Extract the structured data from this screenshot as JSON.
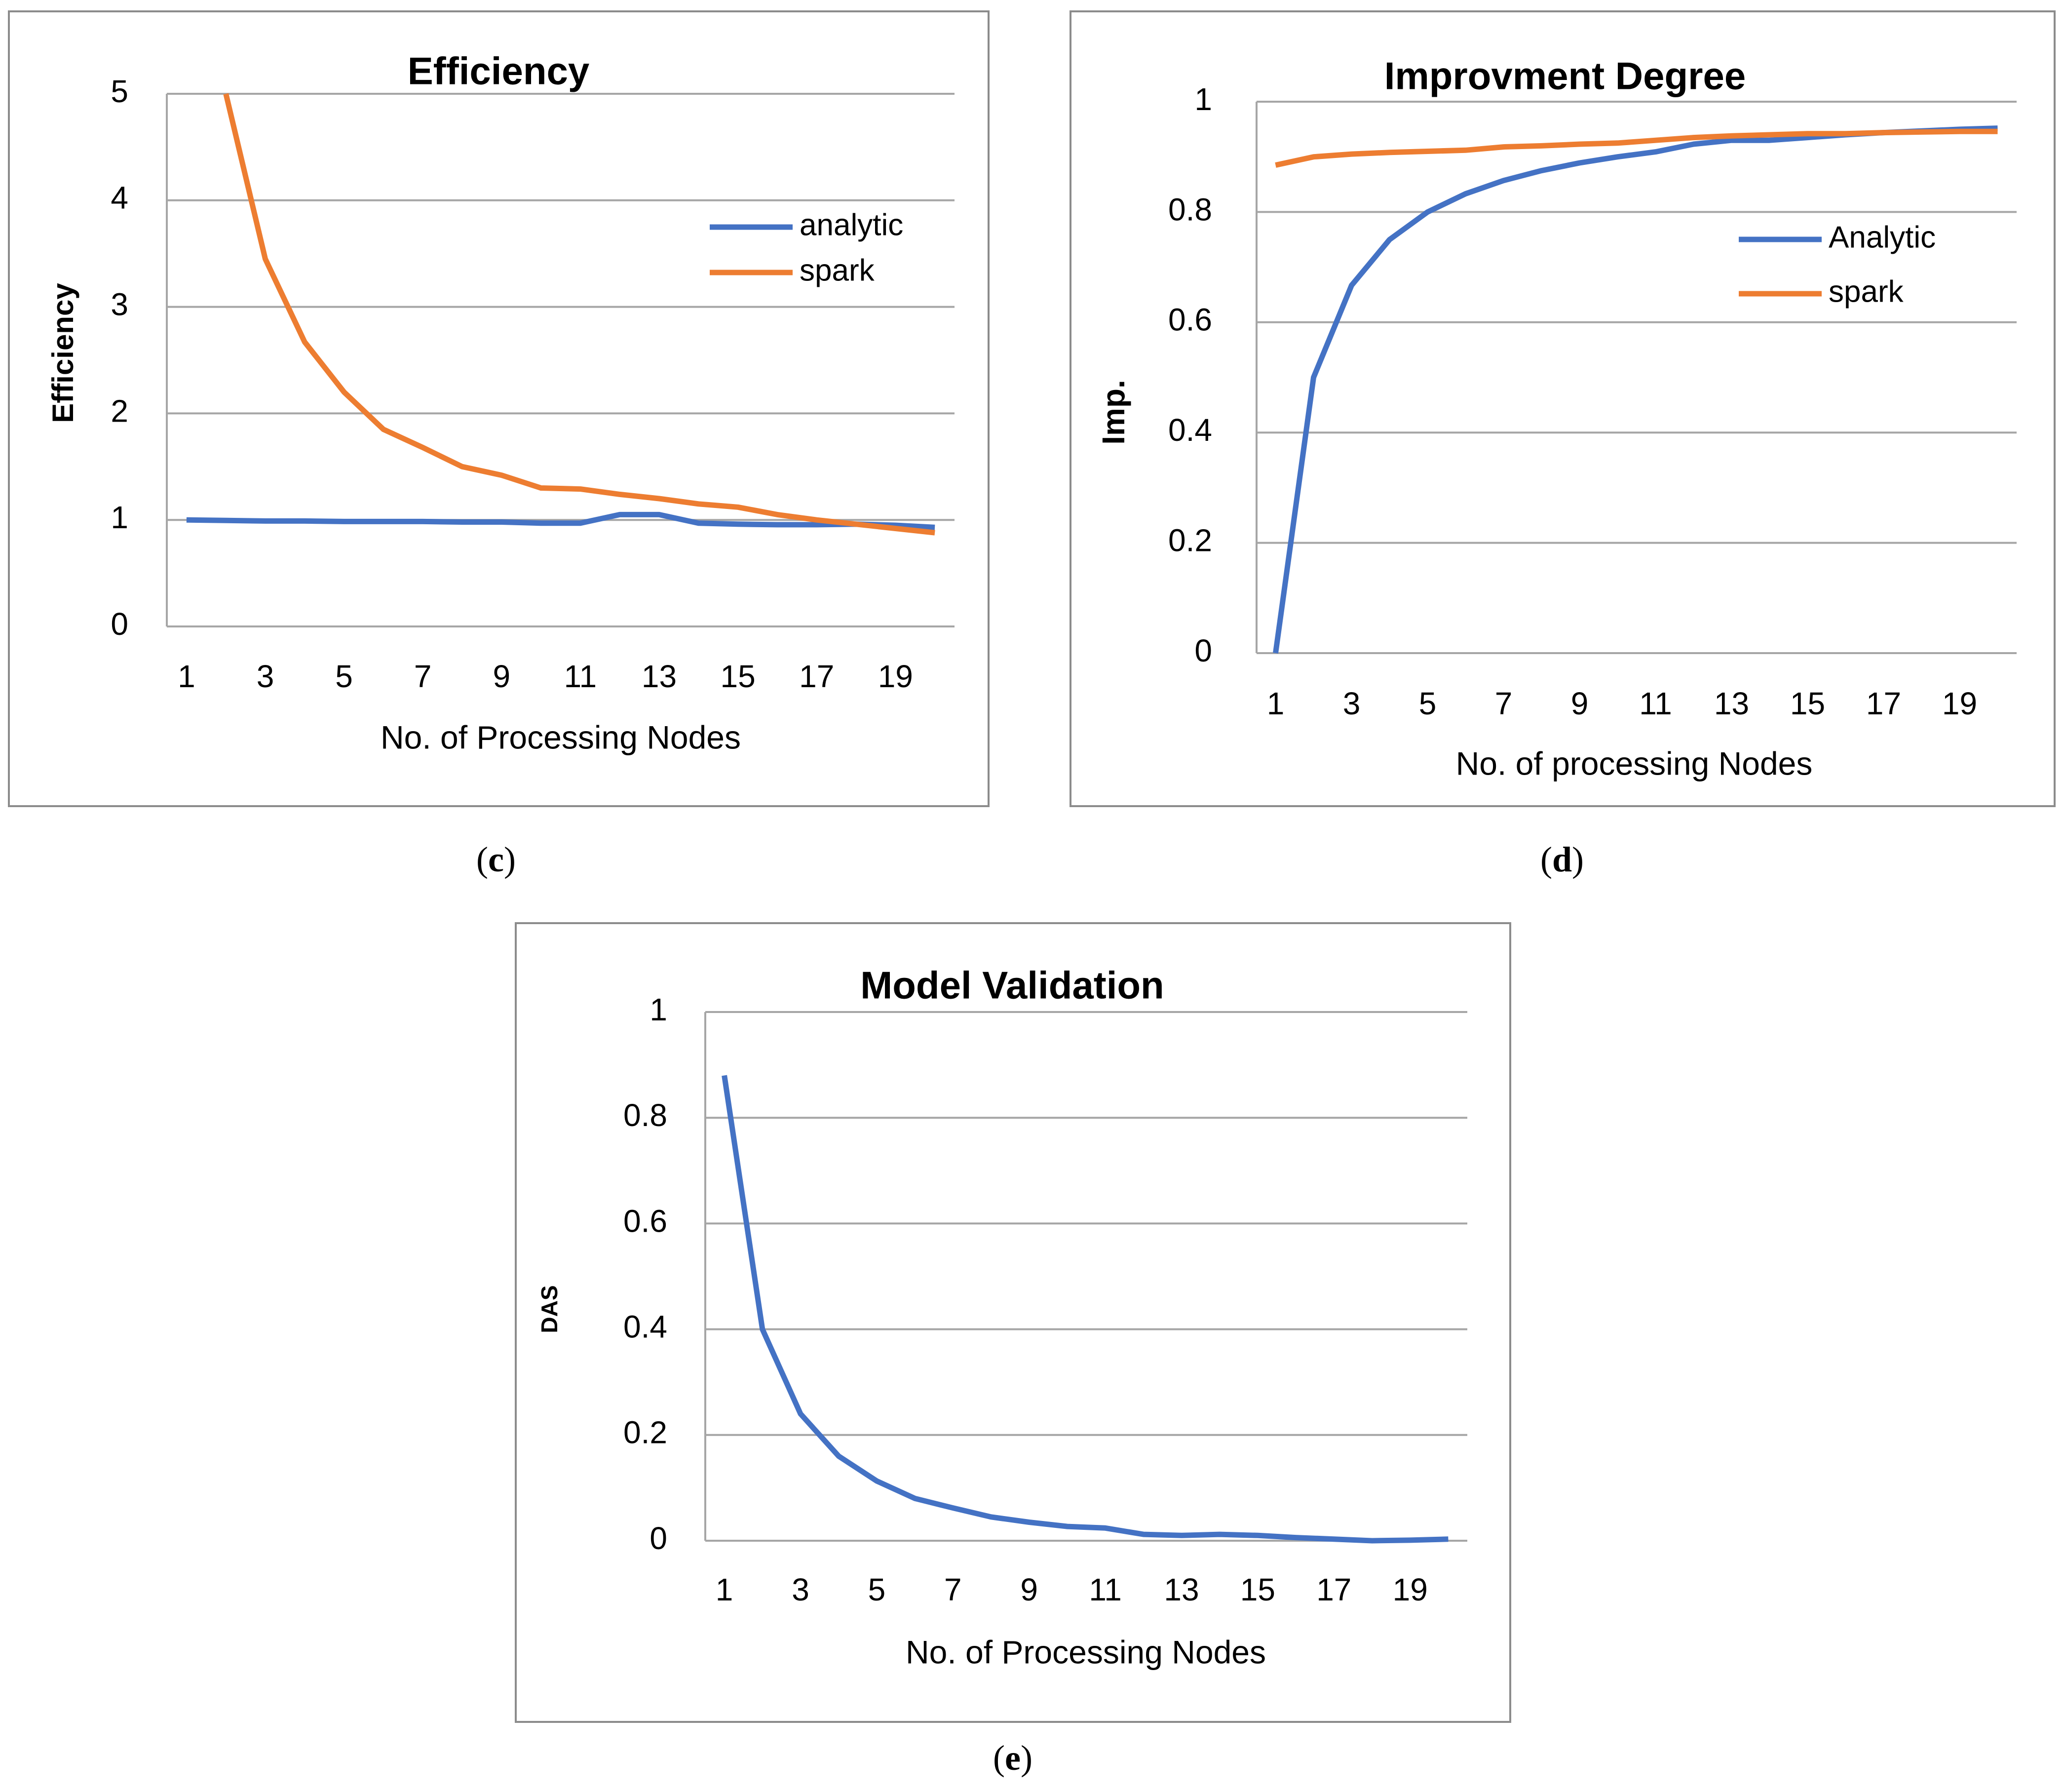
{
  "captions": {
    "c": {
      "open": "(",
      "letter": "c",
      "close": ")"
    },
    "d": {
      "open": "(",
      "letter": "d",
      "close": ")"
    },
    "e": {
      "open": "(",
      "letter": "e",
      "close": ")"
    }
  },
  "colors": {
    "blue": "#4472c4",
    "orange": "#ed7d31",
    "grid": "#a6a6a6",
    "axis": "#a6a6a6",
    "border": "#8c8c8c"
  },
  "chart_data": [
    {
      "id": "efficiency",
      "type": "line",
      "title": "Efficiency",
      "xlabel": "No. of Processing Nodes",
      "ylabel": "Efficiency",
      "x": [
        1,
        2,
        3,
        4,
        5,
        6,
        7,
        8,
        9,
        10,
        11,
        12,
        13,
        14,
        15,
        16,
        17,
        18,
        19,
        20
      ],
      "xticks": [
        "1",
        "3",
        "5",
        "7",
        "9",
        "11",
        "13",
        "15",
        "17",
        "19"
      ],
      "yticks": [
        "0",
        "1",
        "2",
        "3",
        "4",
        "5"
      ],
      "ylim": [
        0,
        5
      ],
      "grid": true,
      "legend_position": "top-right",
      "series": [
        {
          "name": "analytic",
          "color": "#4472c4",
          "values": [
            1.0,
            0.995,
            0.99,
            0.99,
            0.985,
            0.985,
            0.985,
            0.98,
            0.98,
            0.97,
            0.97,
            1.05,
            1.05,
            0.97,
            0.96,
            0.955,
            0.955,
            0.96,
            0.95,
            0.93
          ]
        },
        {
          "name": "spark",
          "color": "#ed7d31",
          "values": [
            null,
            5.0,
            3.45,
            2.67,
            2.2,
            1.85,
            1.68,
            1.5,
            1.42,
            1.3,
            1.29,
            1.24,
            1.2,
            1.15,
            1.12,
            1.05,
            1.0,
            0.96,
            0.92,
            0.88
          ]
        }
      ]
    },
    {
      "id": "improvement",
      "type": "line",
      "title": "Improvment Degree",
      "xlabel": "No. of processing Nodes",
      "ylabel": "Imp.",
      "x": [
        1,
        2,
        3,
        4,
        5,
        6,
        7,
        8,
        9,
        10,
        11,
        12,
        13,
        14,
        15,
        16,
        17,
        18,
        19,
        20
      ],
      "xticks": [
        "1",
        "3",
        "5",
        "7",
        "9",
        "11",
        "13",
        "15",
        "17",
        "19"
      ],
      "yticks": [
        "0",
        "0.2",
        "0.4",
        "0.6",
        "0.8",
        "1"
      ],
      "ylim": [
        0,
        1
      ],
      "grid": true,
      "legend_position": "right",
      "series": [
        {
          "name": "Analytic",
          "color": "#4472c4",
          "values": [
            0.0,
            0.5,
            0.667,
            0.75,
            0.8,
            0.833,
            0.857,
            0.875,
            0.889,
            0.9,
            0.909,
            0.923,
            0.93,
            0.93,
            0.935,
            0.94,
            0.944,
            0.947,
            0.95,
            0.952
          ]
        },
        {
          "name": "spark",
          "color": "#ed7d31",
          "values": [
            0.885,
            0.9,
            0.905,
            0.908,
            0.91,
            0.912,
            0.918,
            0.92,
            0.923,
            0.925,
            0.93,
            0.935,
            0.938,
            0.94,
            0.942,
            0.942,
            0.944,
            0.945,
            0.946,
            0.946
          ]
        }
      ]
    },
    {
      "id": "validation",
      "type": "line",
      "title": "Model Validation",
      "xlabel": "No. of Processing Nodes",
      "ylabel": "DAS",
      "x": [
        1,
        2,
        3,
        4,
        5,
        6,
        7,
        8,
        9,
        10,
        11,
        12,
        13,
        14,
        15,
        16,
        17,
        18,
        19,
        20
      ],
      "xticks": [
        "1",
        "3",
        "5",
        "7",
        "9",
        "11",
        "13",
        "15",
        "17",
        "19"
      ],
      "yticks": [
        "0",
        "0.2",
        "0.4",
        "0.6",
        "0.8",
        "1"
      ],
      "ylim": [
        0,
        1
      ],
      "grid": true,
      "legend_position": "none",
      "series": [
        {
          "name": "DAS",
          "color": "#4472c4",
          "values": [
            0.88,
            0.4,
            0.24,
            0.16,
            0.113,
            0.08,
            0.062,
            0.045,
            0.035,
            0.027,
            0.024,
            0.012,
            0.01,
            0.012,
            0.01,
            0.006,
            0.003,
            0.0,
            0.001,
            0.003
          ]
        }
      ]
    }
  ]
}
